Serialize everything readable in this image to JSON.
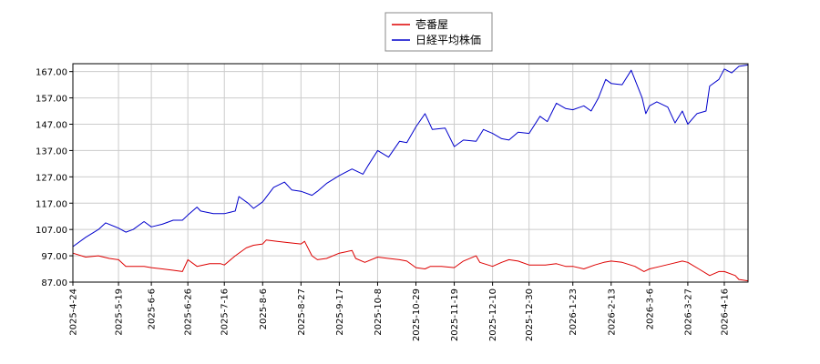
{
  "chart_data": {
    "type": "line",
    "title": "",
    "xlabel": "",
    "ylabel": "",
    "grid": true,
    "legend_position": "top-center",
    "ylim": [
      87,
      170
    ],
    "xlim": [
      "2025-04-24",
      "2026-04-29"
    ],
    "yticks": [
      "87.00",
      "97.00",
      "107.00",
      "117.00",
      "127.00",
      "137.00",
      "147.00",
      "157.00",
      "167.00"
    ],
    "xticks": [
      "2025-4-24",
      "2025-5-19",
      "2025-6-6",
      "2025-6-26",
      "2025-7-16",
      "2025-8-6",
      "2025-8-27",
      "2025-9-17",
      "2025-10-8",
      "2025-10-29",
      "2025-11-19",
      "2025-12-10",
      "2025-12-30",
      "2026-1-23",
      "2026-2-13",
      "2026-3-6",
      "2026-3-27",
      "2026-4-16"
    ],
    "series": [
      {
        "name": "壱番屋",
        "color": "#dd0000",
        "points": [
          [
            "2025-04-24",
            98.0
          ],
          [
            "2025-05-01",
            96.5
          ],
          [
            "2025-05-08",
            97.0
          ],
          [
            "2025-05-14",
            96.0
          ],
          [
            "2025-05-19",
            95.5
          ],
          [
            "2025-05-23",
            93.0
          ],
          [
            "2025-06-02",
            93.0
          ],
          [
            "2025-06-06",
            92.5
          ],
          [
            "2025-06-12",
            92.0
          ],
          [
            "2025-06-18",
            91.5
          ],
          [
            "2025-06-23",
            91.0
          ],
          [
            "2025-06-26",
            95.5
          ],
          [
            "2025-07-01",
            93.0
          ],
          [
            "2025-07-08",
            94.0
          ],
          [
            "2025-07-14",
            94.0
          ],
          [
            "2025-07-16",
            93.5
          ],
          [
            "2025-07-22",
            97.0
          ],
          [
            "2025-07-28",
            100.0
          ],
          [
            "2025-08-01",
            101.0
          ],
          [
            "2025-08-06",
            101.5
          ],
          [
            "2025-08-08",
            103.0
          ],
          [
            "2025-08-14",
            102.5
          ],
          [
            "2025-08-20",
            102.0
          ],
          [
            "2025-08-27",
            101.5
          ],
          [
            "2025-08-29",
            102.5
          ],
          [
            "2025-09-02",
            97.0
          ],
          [
            "2025-09-05",
            95.5
          ],
          [
            "2025-09-10",
            96.0
          ],
          [
            "2025-09-17",
            98.0
          ],
          [
            "2025-09-24",
            99.0
          ],
          [
            "2025-09-26",
            96.0
          ],
          [
            "2025-10-01",
            94.5
          ],
          [
            "2025-10-08",
            96.5
          ],
          [
            "2025-10-14",
            96.0
          ],
          [
            "2025-10-20",
            95.5
          ],
          [
            "2025-10-24",
            95.0
          ],
          [
            "2025-10-29",
            92.5
          ],
          [
            "2025-11-03",
            92.0
          ],
          [
            "2025-11-06",
            93.0
          ],
          [
            "2025-11-12",
            93.0
          ],
          [
            "2025-11-19",
            92.5
          ],
          [
            "2025-11-24",
            95.0
          ],
          [
            "2025-12-01",
            97.0
          ],
          [
            "2025-12-03",
            94.5
          ],
          [
            "2025-12-10",
            93.0
          ],
          [
            "2025-12-15",
            94.5
          ],
          [
            "2025-12-19",
            95.5
          ],
          [
            "2025-12-24",
            95.0
          ],
          [
            "2025-12-30",
            93.5
          ],
          [
            "2026-01-08",
            93.5
          ],
          [
            "2026-01-14",
            94.0
          ],
          [
            "2026-01-19",
            93.0
          ],
          [
            "2026-01-23",
            93.0
          ],
          [
            "2026-01-29",
            92.0
          ],
          [
            "2026-02-04",
            93.5
          ],
          [
            "2026-02-09",
            94.5
          ],
          [
            "2026-02-13",
            95.0
          ],
          [
            "2026-02-19",
            94.5
          ],
          [
            "2026-02-26",
            93.0
          ],
          [
            "2026-03-03",
            91.0
          ],
          [
            "2026-03-06",
            92.0
          ],
          [
            "2026-03-12",
            93.0
          ],
          [
            "2026-03-18",
            94.0
          ],
          [
            "2026-03-24",
            95.0
          ],
          [
            "2026-03-27",
            94.5
          ],
          [
            "2026-04-02",
            92.0
          ],
          [
            "2026-04-08",
            89.5
          ],
          [
            "2026-04-13",
            91.0
          ],
          [
            "2026-04-16",
            91.0
          ],
          [
            "2026-04-22",
            89.5
          ],
          [
            "2026-04-24",
            88.0
          ],
          [
            "2026-04-29",
            87.5
          ]
        ]
      },
      {
        "name": "日経平均株価",
        "color": "#0000cc",
        "points": [
          [
            "2025-04-24",
            100.5
          ],
          [
            "2025-05-01",
            104.0
          ],
          [
            "2025-05-08",
            107.0
          ],
          [
            "2025-05-12",
            109.5
          ],
          [
            "2025-05-19",
            107.5
          ],
          [
            "2025-05-23",
            106.0
          ],
          [
            "2025-05-27",
            107.0
          ],
          [
            "2025-06-02",
            110.0
          ],
          [
            "2025-06-06",
            108.0
          ],
          [
            "2025-06-12",
            109.0
          ],
          [
            "2025-06-18",
            110.5
          ],
          [
            "2025-06-23",
            110.5
          ],
          [
            "2025-06-26",
            112.5
          ],
          [
            "2025-07-01",
            115.5
          ],
          [
            "2025-07-03",
            114.0
          ],
          [
            "2025-07-10",
            113.0
          ],
          [
            "2025-07-16",
            113.0
          ],
          [
            "2025-07-22",
            114.0
          ],
          [
            "2025-07-24",
            119.5
          ],
          [
            "2025-07-29",
            117.0
          ],
          [
            "2025-08-01",
            115.0
          ],
          [
            "2025-08-06",
            117.5
          ],
          [
            "2025-08-12",
            123.0
          ],
          [
            "2025-08-18",
            125.0
          ],
          [
            "2025-08-22",
            122.0
          ],
          [
            "2025-08-27",
            121.5
          ],
          [
            "2025-09-02",
            120.0
          ],
          [
            "2025-09-05",
            121.5
          ],
          [
            "2025-09-10",
            124.5
          ],
          [
            "2025-09-17",
            127.5
          ],
          [
            "2025-09-24",
            130.0
          ],
          [
            "2025-09-30",
            128.0
          ],
          [
            "2025-10-03",
            131.5
          ],
          [
            "2025-10-08",
            137.0
          ],
          [
            "2025-10-14",
            134.5
          ],
          [
            "2025-10-20",
            140.5
          ],
          [
            "2025-10-24",
            140.0
          ],
          [
            "2025-10-29",
            146.0
          ],
          [
            "2025-11-03",
            151.0
          ],
          [
            "2025-11-07",
            145.0
          ],
          [
            "2025-11-14",
            145.5
          ],
          [
            "2025-11-19",
            138.5
          ],
          [
            "2025-11-24",
            141.0
          ],
          [
            "2025-12-01",
            140.5
          ],
          [
            "2025-12-05",
            145.0
          ],
          [
            "2025-12-10",
            143.5
          ],
          [
            "2025-12-15",
            141.5
          ],
          [
            "2025-12-19",
            141.0
          ],
          [
            "2025-12-24",
            144.0
          ],
          [
            "2025-12-30",
            143.5
          ],
          [
            "2026-01-05",
            150.0
          ],
          [
            "2026-01-09",
            148.0
          ],
          [
            "2026-01-14",
            155.0
          ],
          [
            "2026-01-19",
            153.0
          ],
          [
            "2026-01-23",
            152.5
          ],
          [
            "2026-01-29",
            154.0
          ],
          [
            "2026-02-02",
            152.0
          ],
          [
            "2026-02-06",
            157.0
          ],
          [
            "2026-02-10",
            164.0
          ],
          [
            "2026-02-13",
            162.5
          ],
          [
            "2026-02-19",
            162.0
          ],
          [
            "2026-02-24",
            167.5
          ],
          [
            "2026-03-02",
            157.0
          ],
          [
            "2026-03-04",
            151.0
          ],
          [
            "2026-03-06",
            154.0
          ],
          [
            "2026-03-10",
            155.5
          ],
          [
            "2026-03-16",
            153.5
          ],
          [
            "2026-03-20",
            147.5
          ],
          [
            "2026-03-24",
            152.0
          ],
          [
            "2026-03-27",
            147.0
          ],
          [
            "2026-04-01",
            151.0
          ],
          [
            "2026-04-06",
            152.0
          ],
          [
            "2026-04-08",
            161.5
          ],
          [
            "2026-04-13",
            164.0
          ],
          [
            "2026-04-16",
            168.0
          ],
          [
            "2026-04-20",
            166.5
          ],
          [
            "2026-04-24",
            169.0
          ],
          [
            "2026-04-29",
            169.5
          ]
        ]
      }
    ]
  }
}
